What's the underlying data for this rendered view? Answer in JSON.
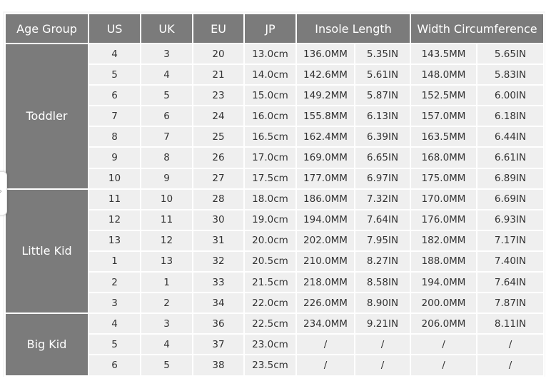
{
  "headers": [
    "Age Group",
    "US",
    "UK",
    "EU",
    "JP",
    "Insole Length",
    "Width Circumference"
  ],
  "groups": [
    {
      "name": "Toddler",
      "rows": [
        [
          "4",
          "3",
          "20",
          "13.0cm",
          "136.0MM",
          "5.35IN",
          "143.5MM",
          "5.65IN"
        ],
        [
          "5",
          "4",
          "21",
          "14.0cm",
          "142.6MM",
          "5.61IN",
          "148.0MM",
          "5.83IN"
        ],
        [
          "6",
          "5",
          "23",
          "15.0cm",
          "149.2MM",
          "5.87IN",
          "152.5MM",
          "6.00IN"
        ],
        [
          "7",
          "6",
          "24",
          "16.0cm",
          "155.8MM",
          "6.13IN",
          "157.0MM",
          "6.18IN"
        ],
        [
          "8",
          "7",
          "25",
          "16.5cm",
          "162.4MM",
          "6.39IN",
          "163.5MM",
          "6.44IN"
        ],
        [
          "9",
          "8",
          "26",
          "17.0cm",
          "169.0MM",
          "6.65IN",
          "168.0MM",
          "6.61IN"
        ],
        [
          "10",
          "9",
          "27",
          "17.5cm",
          "177.0MM",
          "6.97IN",
          "175.0MM",
          "6.89IN"
        ]
      ]
    },
    {
      "name": "Little Kid",
      "rows": [
        [
          "11",
          "10",
          "28",
          "18.0cm",
          "186.0MM",
          "7.32IN",
          "170.0MM",
          "6.69IN"
        ],
        [
          "12",
          "11",
          "30",
          "19.0cm",
          "194.0MM",
          "7.64IN",
          "176.0MM",
          "6.93IN"
        ],
        [
          "13",
          "12",
          "31",
          "20.0cm",
          "202.0MM",
          "7.95IN",
          "182.0MM",
          "7.17IN"
        ],
        [
          "1",
          "13",
          "32",
          "20.5cm",
          "210.0MM",
          "8.27IN",
          "188.0MM",
          "7.40IN"
        ],
        [
          "2",
          "1",
          "33",
          "21.5cm",
          "218.0MM",
          "8.58IN",
          "194.0MM",
          "7.64IN"
        ],
        [
          "3",
          "2",
          "34",
          "22.0cm",
          "226.0MM",
          "8.90IN",
          "200.0MM",
          "7.87IN"
        ]
      ]
    },
    {
      "name": "Big Kid",
      "rows": [
        [
          "4",
          "3",
          "36",
          "22.5cm",
          "234.0MM",
          "9.21IN",
          "206.0MM",
          "8.11IN"
        ],
        [
          "5",
          "4",
          "37",
          "23.0cm",
          "/",
          "/",
          "/",
          "/"
        ],
        [
          "6",
          "5",
          "38",
          "23.5cm",
          "/",
          "/",
          "/",
          "/"
        ]
      ]
    }
  ],
  "handle_icon": "chevron-right-icon"
}
